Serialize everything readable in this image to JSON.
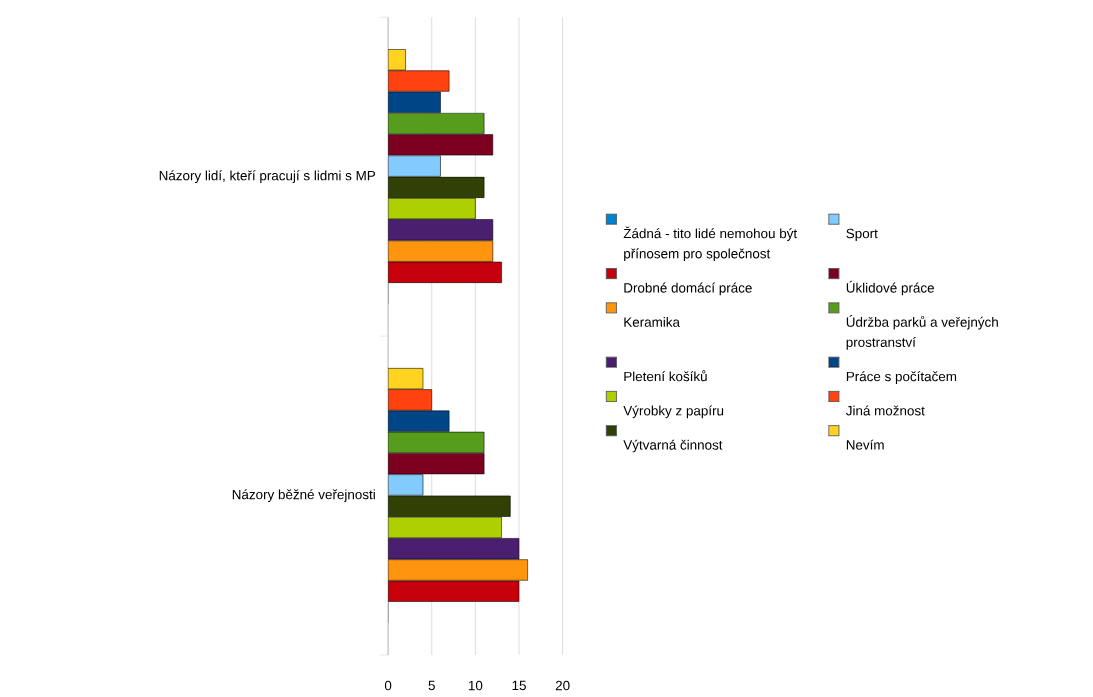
{
  "chart_data": {
    "type": "bar",
    "orientation": "horizontal",
    "categories": [
      "Názory lidí, kteří pracují s lidmi s MP",
      "Názory běžné veřejnosti"
    ],
    "series": [
      {
        "name": "Žádná - tito lidé nemohou být přínosem pro společnost",
        "color": "#0084d1",
        "values": [
          0,
          0
        ]
      },
      {
        "name": "Drobné domácí práce",
        "color": "#c5000b",
        "values": [
          13,
          15
        ]
      },
      {
        "name": "Keramika",
        "color": "#ff950e",
        "values": [
          12,
          16
        ]
      },
      {
        "name": "Pletení košíků",
        "color": "#4b1f6f",
        "values": [
          12,
          15
        ]
      },
      {
        "name": "Výrobky z papíru",
        "color": "#aecf00",
        "values": [
          10,
          13
        ]
      },
      {
        "name": "Výtvarná činnost",
        "color": "#314004",
        "values": [
          11,
          14
        ]
      },
      {
        "name": "Sport",
        "color": "#83caff",
        "values": [
          6,
          4
        ]
      },
      {
        "name": "Úklidové práce",
        "color": "#7e0021",
        "values": [
          12,
          11
        ]
      },
      {
        "name": "Údržba parků a veřejných prostranství",
        "color": "#579d1c",
        "values": [
          11,
          11
        ]
      },
      {
        "name": "Práce s počítačem",
        "color": "#004586",
        "values": [
          6,
          7
        ]
      },
      {
        "name": "Jiná možnost",
        "color": "#ff420e",
        "values": [
          7,
          5
        ]
      },
      {
        "name": "Nevím",
        "color": "#ffd320",
        "values": [
          2,
          4
        ]
      }
    ],
    "xlim": [
      0,
      20
    ],
    "xticks": [
      0,
      5,
      10,
      15,
      20
    ],
    "grid": "x",
    "legend": "right"
  }
}
